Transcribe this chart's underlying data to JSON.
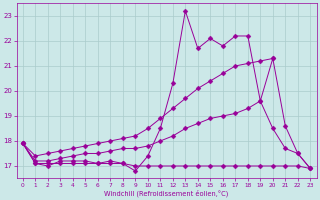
{
  "background_color": "#cce8e8",
  "grid_color": "#aacccc",
  "line_color": "#990099",
  "marker": "D",
  "marker_size": 2.5,
  "xlim": [
    -0.5,
    23.5
  ],
  "ylim": [
    16.5,
    23.5
  ],
  "xticks": [
    0,
    1,
    2,
    3,
    4,
    5,
    6,
    7,
    8,
    9,
    10,
    11,
    12,
    13,
    14,
    15,
    16,
    17,
    18,
    19,
    20,
    21,
    22,
    23
  ],
  "yticks": [
    17,
    18,
    19,
    20,
    21,
    22,
    23
  ],
  "xlabel": "Windchill (Refroidissement éolien,°C)",
  "line1_x": [
    0,
    1,
    2,
    3,
    4,
    5,
    6,
    7,
    8,
    9,
    10,
    11,
    12,
    13,
    14,
    15,
    16,
    17,
    18,
    19,
    20,
    21,
    22,
    23
  ],
  "line1_y": [
    17.9,
    17.1,
    17.0,
    17.2,
    17.2,
    17.2,
    17.1,
    17.2,
    17.1,
    16.8,
    17.4,
    18.5,
    20.3,
    23.2,
    21.7,
    22.1,
    21.8,
    22.2,
    22.2,
    19.6,
    21.3,
    18.6,
    17.5,
    16.9
  ],
  "line2_x": [
    0,
    1,
    2,
    3,
    4,
    5,
    6,
    7,
    8,
    9,
    10,
    11,
    12,
    13,
    14,
    15,
    16,
    17,
    18,
    19,
    20,
    21,
    22,
    23
  ],
  "line2_y": [
    17.9,
    17.1,
    17.1,
    17.1,
    17.1,
    17.1,
    17.1,
    17.1,
    17.1,
    17.0,
    17.0,
    17.0,
    17.0,
    17.0,
    17.0,
    17.0,
    17.0,
    17.0,
    17.0,
    17.0,
    17.0,
    17.0,
    17.0,
    16.9
  ],
  "line3_x": [
    0,
    1,
    2,
    3,
    4,
    5,
    6,
    7,
    8,
    9,
    10,
    11,
    12,
    13,
    14,
    15,
    16,
    17,
    18,
    19,
    20
  ],
  "line3_y": [
    17.9,
    17.4,
    17.5,
    17.6,
    17.7,
    17.8,
    17.9,
    18.0,
    18.1,
    18.2,
    18.5,
    18.9,
    19.3,
    19.7,
    20.1,
    20.4,
    20.7,
    21.0,
    21.1,
    21.2,
    21.3
  ],
  "line4_x": [
    0,
    1,
    2,
    3,
    4,
    5,
    6,
    7,
    8,
    9,
    10,
    11,
    12,
    13,
    14,
    15,
    16,
    17,
    18,
    19,
    20,
    21,
    22,
    23
  ],
  "line4_y": [
    17.9,
    17.2,
    17.2,
    17.3,
    17.4,
    17.5,
    17.5,
    17.6,
    17.7,
    17.7,
    17.8,
    18.0,
    18.2,
    18.5,
    18.7,
    18.9,
    19.0,
    19.1,
    19.3,
    19.6,
    18.5,
    17.7,
    17.5,
    16.9
  ]
}
